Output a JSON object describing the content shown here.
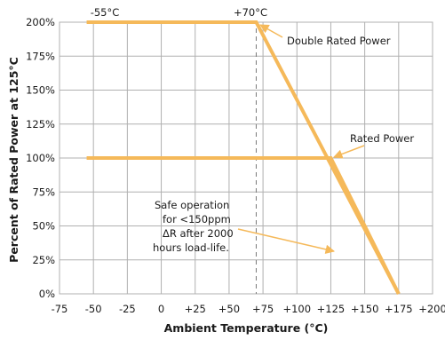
{
  "chart_data": {
    "type": "line",
    "xlabel": "Ambient Temperature (°C)",
    "ylabel": "Percent of Rated Power at 125°C",
    "xlim": [
      -75,
      200
    ],
    "ylim": [
      0,
      200
    ],
    "x_ticks": [
      -75,
      -50,
      -25,
      0,
      25,
      50,
      75,
      100,
      125,
      150,
      175,
      200
    ],
    "x_tick_labels": [
      "-75",
      "-50",
      "-25",
      "0",
      "+25",
      "+50",
      "+75",
      "+100",
      "+125",
      "+150",
      "+175",
      "+200"
    ],
    "y_ticks": [
      0,
      25,
      50,
      75,
      100,
      125,
      150,
      175,
      200
    ],
    "y_tick_labels": [
      "0%",
      "25%",
      "50%",
      "75%",
      "100%",
      "125%",
      "150%",
      "175%",
      "200%"
    ],
    "grid": true,
    "line_color": "#f5b95a",
    "series": [
      {
        "name": "Double Rated Power",
        "x": [
          -55,
          70,
          175
        ],
        "y": [
          200,
          200,
          0
        ]
      },
      {
        "name": "Rated Power",
        "x": [
          -55,
          125,
          175
        ],
        "y": [
          100,
          100,
          0
        ]
      }
    ],
    "reference_lines": [
      {
        "x": 70,
        "style": "dashed"
      }
    ],
    "annotations": {
      "top_left": "-55°C",
      "top_mid": "+70°C",
      "double_rated": "Double Rated Power",
      "rated": "Rated Power",
      "safe_lines": [
        "Safe operation",
        "for <150ppm",
        "ΔR after 2000",
        "hours load-life."
      ]
    }
  }
}
